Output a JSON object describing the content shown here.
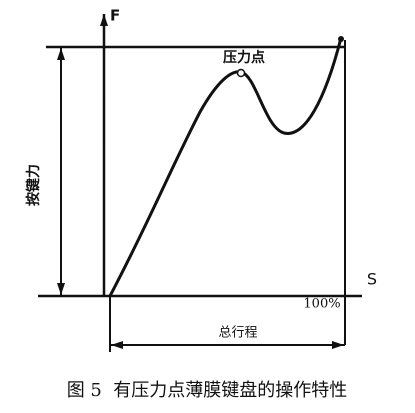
{
  "diagram": {
    "force_axis": "F",
    "stroke_axis": "S",
    "pressure_point": "压力点",
    "key_force": "按键力",
    "full_stroke_mark": "100%",
    "total_stroke": "总行程",
    "caption": "图 5  有压力点薄膜键盘的操作特性"
  }
}
